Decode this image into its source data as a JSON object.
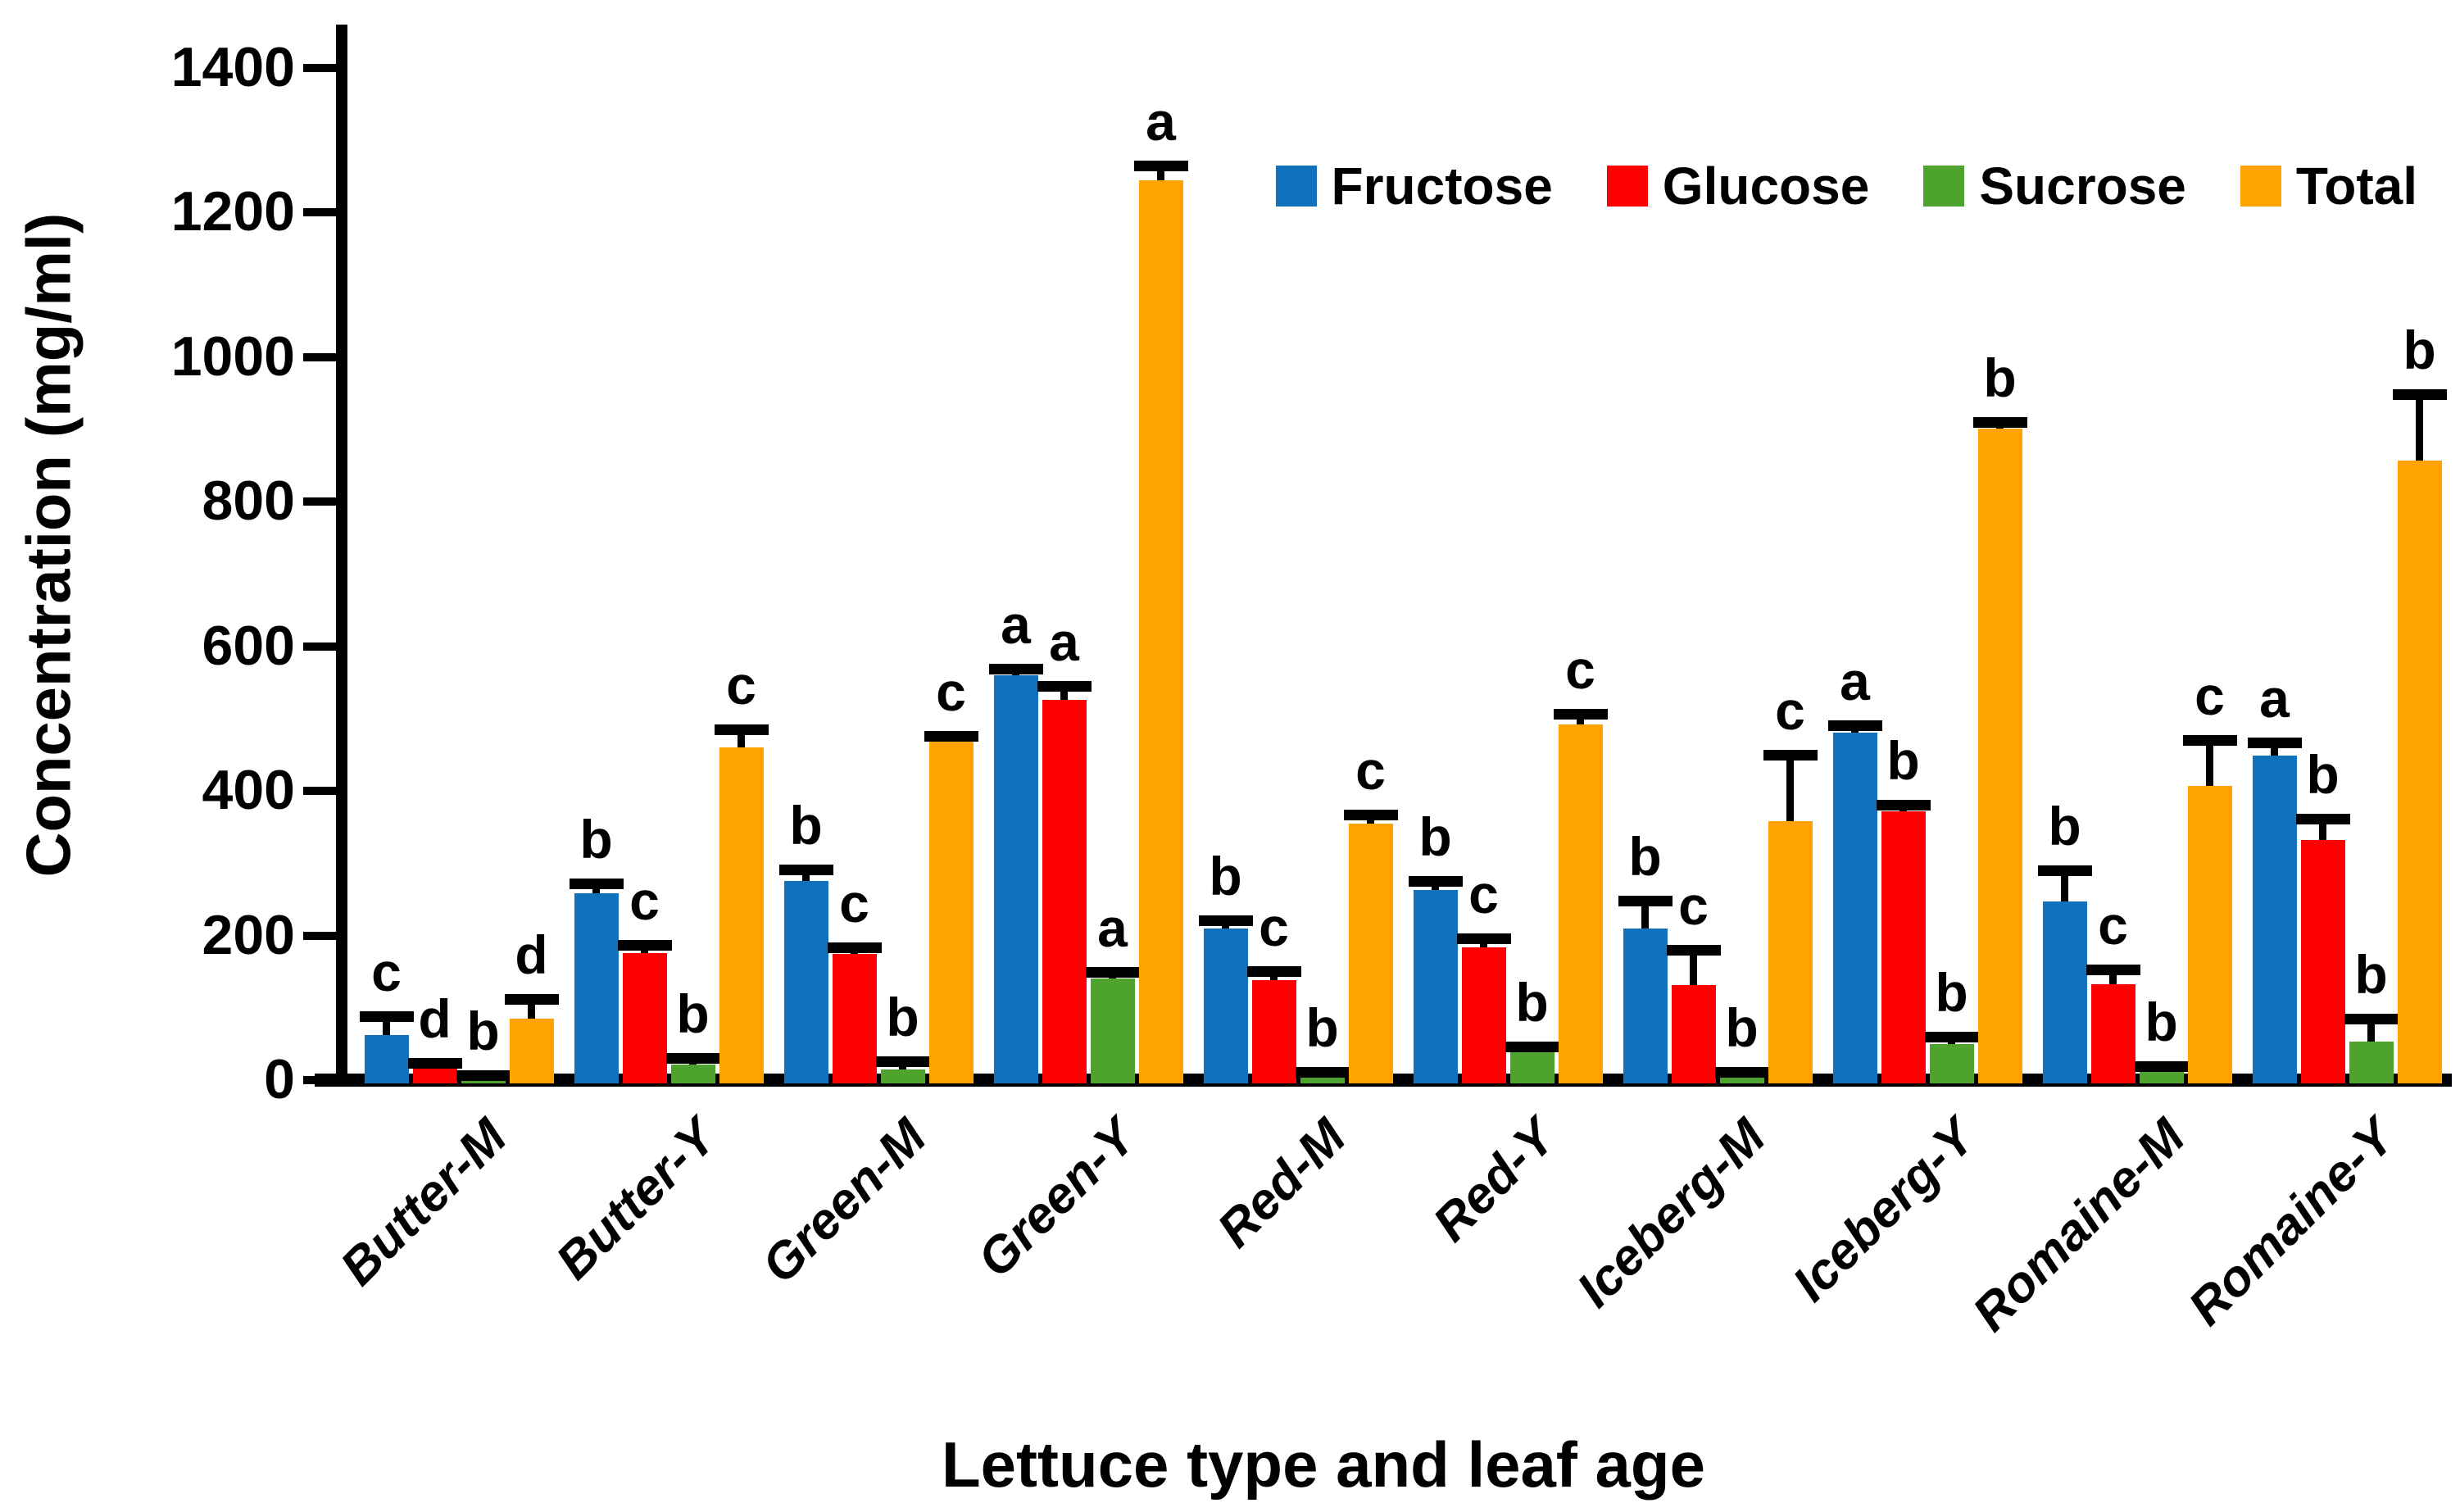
{
  "chart_data": {
    "type": "bar",
    "title": "",
    "xlabel": "Lettuce type and leaf age",
    "ylabel": "Concentration (mg/ml)",
    "ylim": [
      0,
      1400
    ],
    "yticks": [
      0,
      200,
      400,
      600,
      800,
      1000,
      1200,
      1400
    ],
    "grid": false,
    "legend_position": "top-right",
    "error_bars": "upper caps shown, one-sided",
    "significance_letters_note": "letters a/b/c/d above error bars",
    "categories": [
      "Butter-M",
      "Butter-Y",
      "Green-M",
      "Green-Y",
      "Red-M",
      "Red-Y",
      "Iceberg-M",
      "Iceberg-Y",
      "Romaine-M",
      "Romaine-Y"
    ],
    "series": [
      {
        "name": "Fructose",
        "color": "#1072BC",
        "values": [
          62,
          258,
          275,
          560,
          210,
          263,
          210,
          481,
          247,
          449
        ],
        "errors": [
          26,
          14,
          16,
          8,
          10,
          12,
          38,
          9,
          43,
          17
        ],
        "letters": [
          "c",
          "b",
          "b",
          "a",
          "b",
          "b",
          "b",
          "a",
          "b",
          "a"
        ]
      },
      {
        "name": "Glucose",
        "color": "#FE0000",
        "values": [
          17,
          176,
          175,
          526,
          138,
          184,
          132,
          372,
          133,
          332
        ],
        "errors": [
          6,
          10,
          8,
          19,
          12,
          12,
          48,
          8,
          19,
          29
        ],
        "letters": [
          "d",
          "c",
          "c",
          "a",
          "c",
          "c",
          "c",
          "b",
          "c",
          "b"
        ]
      },
      {
        "name": "Sucrose",
        "color": "#4EA32E",
        "values": [
          4,
          22,
          15,
          141,
          8,
          38,
          8,
          50,
          14,
          53
        ],
        "errors": [
          2,
          8,
          10,
          8,
          3,
          8,
          3,
          10,
          5,
          32
        ],
        "letters": [
          "b",
          "b",
          "b",
          "a",
          "b",
          "b",
          "b",
          "b",
          "b",
          "b"
        ]
      },
      {
        "name": "Total",
        "color": "#FFA303",
        "values": [
          85,
          460,
          468,
          1245,
          355,
          492,
          358,
          901,
          407,
          857
        ],
        "errors": [
          27,
          25,
          8,
          20,
          12,
          14,
          92,
          9,
          63,
          91
        ],
        "letters": [
          "d",
          "c",
          "c",
          "a",
          "c",
          "c",
          "c",
          "b",
          "c",
          "b"
        ]
      }
    ],
    "axis_color": "#000000"
  }
}
